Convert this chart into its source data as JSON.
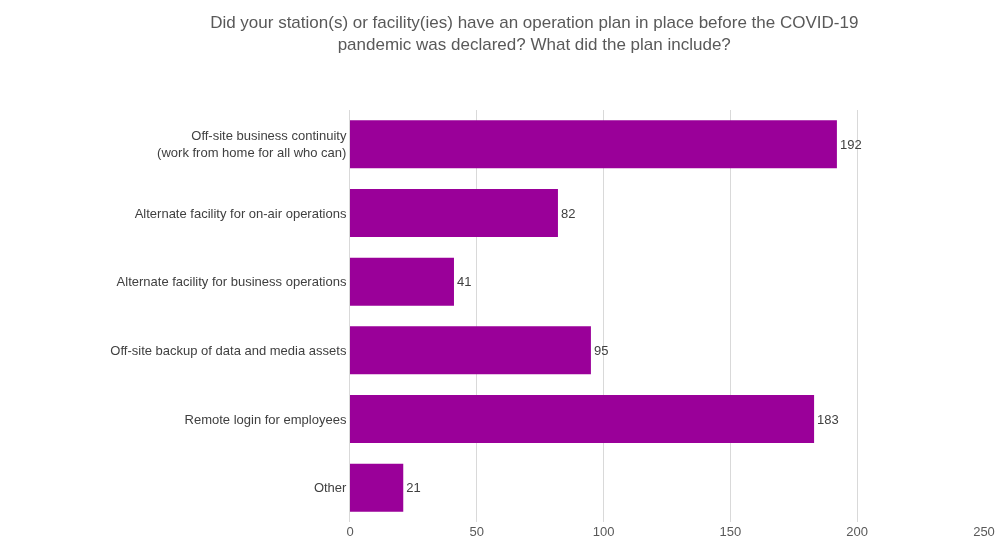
{
  "chart_data": {
    "type": "bar",
    "orientation": "horizontal",
    "title": "Did your station(s) or facility(ies) have an operation plan in place before the COVID-19\npandemic was declared? What did the plan include?",
    "categories": [
      "Off-site business continuity\n(work from home for all who can)",
      "Alternate facility for on-air operations",
      "Alternate facility for business operations",
      "Off-site backup of data and media assets",
      "Remote login for employees",
      "Other"
    ],
    "values": [
      192,
      82,
      41,
      95,
      183,
      21
    ],
    "color": "#9a0099",
    "xlim": [
      0,
      250
    ],
    "xticks": [
      0,
      50,
      100,
      150,
      200,
      250
    ],
    "grid": "x",
    "data_labels": true
  }
}
